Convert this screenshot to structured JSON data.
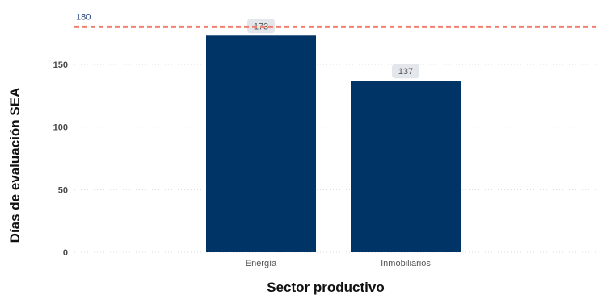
{
  "chart_data": {
    "type": "bar",
    "categories": [
      "Energía",
      "Inmobiliarios"
    ],
    "values": [
      173,
      137
    ],
    "data_labels": [
      "173",
      "137"
    ],
    "xlabel": "Sector productivo",
    "ylabel": "Días de evaluación SEA",
    "ylim": [
      0,
      185
    ],
    "yticks": [
      0,
      50,
      100,
      150
    ],
    "ytick_labels": [
      "0",
      "50",
      "100",
      "150"
    ],
    "grid": true,
    "bar_color": "#003366",
    "reference_line": {
      "value": 180,
      "label": "180",
      "color": "#f08070",
      "label_color": "#1f3f78"
    }
  }
}
